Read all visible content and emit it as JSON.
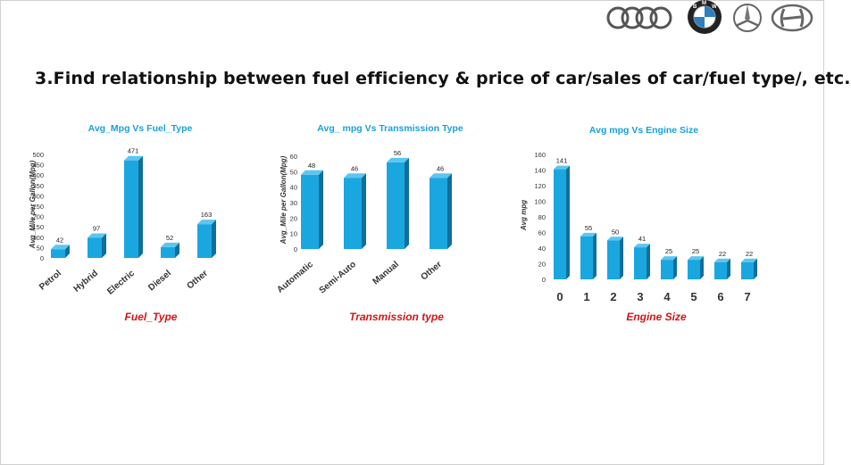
{
  "slide": {
    "heading": "3.Find relationship between fuel efficiency & price of car/sales of car/fuel type/, etc.",
    "brands": [
      "audi-logo",
      "bmw-logo",
      "mercedes-logo",
      "hyundai-logo"
    ],
    "bmw_letters": [
      "B",
      "M",
      "W"
    ]
  },
  "colors": {
    "bar": "#1aa7e0",
    "bar_side": "#0f6f9b",
    "bar_top": "#5cc6f0",
    "title": "#1aa0d8",
    "xlabel": "#d41414"
  },
  "chart_data": [
    {
      "type": "bar",
      "title": "Avg_Mpg Vs Fuel_Type",
      "xlabel": "Fuel_Type",
      "ylabel": "Avg_Mile per Gallon(Mpg)",
      "categories": [
        "Petrol",
        "Hybrid",
        "Electric",
        "Diesel",
        "Other"
      ],
      "values": [
        42,
        97,
        471,
        52,
        163
      ],
      "ylim": [
        0,
        500
      ],
      "yticks": [
        "0",
        "50",
        "100",
        "150",
        "200",
        "250",
        "300",
        "350",
        "400",
        "450",
        "500"
      ],
      "rotate_labels": true
    },
    {
      "type": "bar",
      "title": "Avg_ mpg Vs Transmission Type",
      "xlabel": "Transmission type",
      "ylabel": "Avg_Mile per Gallon(Mpg)",
      "categories": [
        "Automatic",
        "Semi-Auto",
        "Manual",
        "Other"
      ],
      "values": [
        48,
        46,
        56,
        46
      ],
      "ylim": [
        0,
        60
      ],
      "yticks": [
        "0",
        "10",
        "20",
        "30",
        "40",
        "50",
        "60"
      ],
      "rotate_labels": true
    },
    {
      "type": "bar",
      "title": "Avg mpg Vs Engine Size",
      "xlabel": "Engine Size",
      "ylabel": "Avg mpg",
      "categories": [
        "0",
        "1",
        "2",
        "3",
        "4",
        "5",
        "6",
        "7"
      ],
      "values": [
        141,
        55,
        50,
        41,
        25,
        25,
        22,
        22
      ],
      "ylim": [
        0,
        160
      ],
      "yticks": [
        "0",
        "20",
        "40",
        "60",
        "80",
        "100",
        "120",
        "140",
        "160"
      ],
      "rotate_labels": false
    }
  ]
}
